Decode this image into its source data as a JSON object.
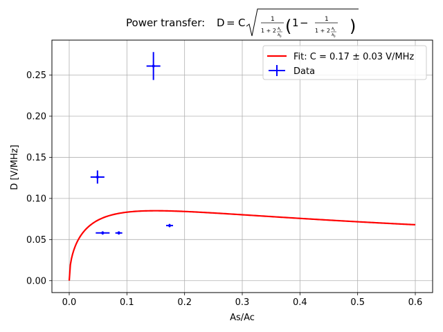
{
  "chart_data": {
    "type": "scatter",
    "title": {
      "text": "Power transfer:",
      "formula": "D = C √( 1/(1 + 2·Ac/A0) · (1 − 1/(1 + 2·Ac/A0)) )"
    },
    "xlabel": "As/Ac",
    "ylabel": "D [V/MHz]",
    "xlim": [
      -0.03,
      0.63
    ],
    "ylim": [
      -0.0145,
      0.2925
    ],
    "xticks": [
      0.0,
      0.1,
      0.2,
      0.3,
      0.4,
      0.5,
      0.6
    ],
    "xtick_labels": [
      "0.0",
      "0.1",
      "0.2",
      "0.3",
      "0.4",
      "0.5",
      "0.6"
    ],
    "yticks": [
      0.0,
      0.05,
      0.1,
      0.15,
      0.2,
      0.25
    ],
    "ytick_labels": [
      "0.00",
      "0.05",
      "0.10",
      "0.15",
      "0.20",
      "0.25"
    ],
    "grid": true,
    "legend_position": "top-right",
    "series": [
      {
        "name": "Fit: C = 0.17 ± 0.03 V/MHz",
        "kind": "line",
        "color": "#ff0000",
        "x_range": [
          0.0,
          0.6
        ],
        "fit_function": "D = C*sqrt(g*(1-g)), g = 1/(1+2x/A0)",
        "fit_C": 0.17,
        "fit_A0": 0.3
      },
      {
        "name": "Data",
        "kind": "errorbar",
        "color": "#0000ff",
        "points": [
          {
            "x": 0.049,
            "y": 0.126,
            "xerr": 0.012,
            "yerr": 0.008
          },
          {
            "x": 0.146,
            "y": 0.261,
            "xerr": 0.012,
            "yerr": 0.017
          },
          {
            "x": 0.058,
            "y": 0.058,
            "xerr": 0.012,
            "yerr": 0.002
          },
          {
            "x": 0.086,
            "y": 0.058,
            "xerr": 0.006,
            "yerr": 0.002
          },
          {
            "x": 0.174,
            "y": 0.067,
            "xerr": 0.006,
            "yerr": 0.002
          }
        ]
      }
    ]
  }
}
